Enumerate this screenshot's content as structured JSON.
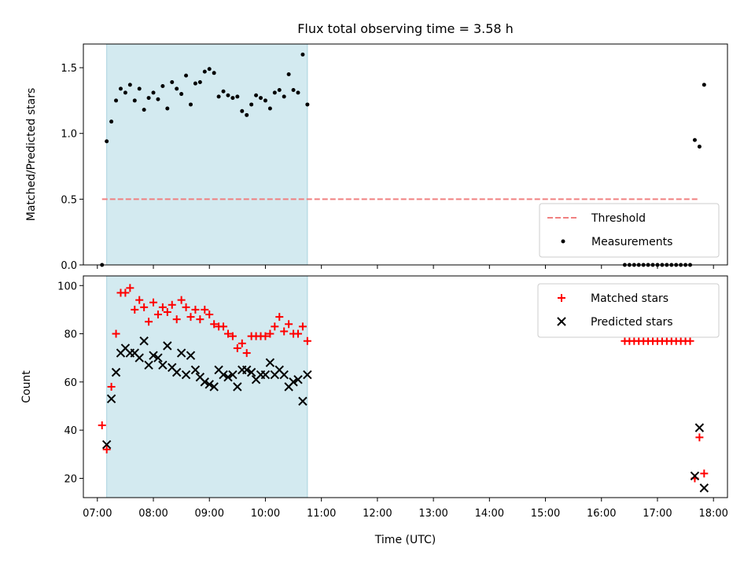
{
  "chart_data": [
    {
      "type": "scatter",
      "title": "Flux total observing time = 3.58 h",
      "xlabel": "",
      "ylabel": "Matched/Predicted stars",
      "x_unit": "Time (UTC)",
      "xlim": [
        "06:45",
        "18:15"
      ],
      "ylim": [
        0,
        1.68
      ],
      "yticks": [
        "0.0",
        "0.5",
        "1.0",
        "1.5"
      ],
      "ytick_values": [
        0,
        0.5,
        1.0,
        1.5
      ],
      "shaded_span": {
        "start": "07:10",
        "end": "10:45",
        "color": "#d3eaf0"
      },
      "threshold": {
        "name": "Threshold",
        "y": 0.5,
        "x_start": "07:05",
        "x_end": "17:45",
        "color": "#f08080"
      },
      "legend": {
        "placement": "lower right",
        "entries": [
          "Threshold",
          "Measurements"
        ]
      },
      "series": [
        {
          "name": "Measurements",
          "marker": "dot",
          "color": "#000000",
          "points": [
            [
              "07:05",
              0.0
            ],
            [
              "07:10",
              0.94
            ],
            [
              "07:15",
              1.09
            ],
            [
              "07:20",
              1.25
            ],
            [
              "07:25",
              1.34
            ],
            [
              "07:30",
              1.31
            ],
            [
              "07:35",
              1.37
            ],
            [
              "07:40",
              1.25
            ],
            [
              "07:45",
              1.34
            ],
            [
              "07:50",
              1.18
            ],
            [
              "07:55",
              1.27
            ],
            [
              "08:00",
              1.31
            ],
            [
              "08:05",
              1.26
            ],
            [
              "08:10",
              1.36
            ],
            [
              "08:15",
              1.19
            ],
            [
              "08:20",
              1.39
            ],
            [
              "08:25",
              1.34
            ],
            [
              "08:30",
              1.3
            ],
            [
              "08:35",
              1.44
            ],
            [
              "08:40",
              1.22
            ],
            [
              "08:45",
              1.38
            ],
            [
              "08:50",
              1.39
            ],
            [
              "08:55",
              1.47
            ],
            [
              "09:00",
              1.49
            ],
            [
              "09:05",
              1.46
            ],
            [
              "09:10",
              1.28
            ],
            [
              "09:15",
              1.32
            ],
            [
              "09:20",
              1.29
            ],
            [
              "09:25",
              1.27
            ],
            [
              "09:30",
              1.28
            ],
            [
              "09:35",
              1.17
            ],
            [
              "09:40",
              1.14
            ],
            [
              "09:45",
              1.22
            ],
            [
              "09:50",
              1.29
            ],
            [
              "09:55",
              1.27
            ],
            [
              "10:00",
              1.25
            ],
            [
              "10:05",
              1.19
            ],
            [
              "10:10",
              1.31
            ],
            [
              "10:15",
              1.33
            ],
            [
              "10:20",
              1.28
            ],
            [
              "10:25",
              1.45
            ],
            [
              "10:30",
              1.33
            ],
            [
              "10:35",
              1.31
            ],
            [
              "10:40",
              1.6
            ],
            [
              "10:45",
              1.22
            ],
            [
              "16:25",
              0.0
            ],
            [
              "16:30",
              0.0
            ],
            [
              "16:35",
              0.0
            ],
            [
              "16:40",
              0.0
            ],
            [
              "16:45",
              0.0
            ],
            [
              "16:50",
              0.0
            ],
            [
              "16:55",
              0.0
            ],
            [
              "17:00",
              0.0
            ],
            [
              "17:05",
              0.0
            ],
            [
              "17:10",
              0.0
            ],
            [
              "17:15",
              0.0
            ],
            [
              "17:20",
              0.0
            ],
            [
              "17:25",
              0.0
            ],
            [
              "17:30",
              0.0
            ],
            [
              "17:35",
              0.0
            ],
            [
              "17:40",
              0.95
            ],
            [
              "17:45",
              0.9
            ],
            [
              "17:50",
              1.37
            ]
          ]
        }
      ]
    },
    {
      "type": "scatter",
      "title": "",
      "xlabel": "Time (UTC)",
      "ylabel": "Count",
      "xlim": [
        "06:45",
        "18:15"
      ],
      "ylim": [
        12,
        104
      ],
      "xticks": [
        "07:00",
        "08:00",
        "09:00",
        "10:00",
        "11:00",
        "12:00",
        "13:00",
        "14:00",
        "15:00",
        "16:00",
        "17:00",
        "18:00"
      ],
      "yticks": [
        "20",
        "40",
        "60",
        "80",
        "100"
      ],
      "ytick_values": [
        20,
        40,
        60,
        80,
        100
      ],
      "shaded_span": {
        "start": "07:10",
        "end": "10:45",
        "color": "#d3eaf0"
      },
      "legend": {
        "placement": "upper right",
        "entries": [
          "Matched stars",
          "Predicted stars"
        ]
      },
      "series": [
        {
          "name": "Matched stars",
          "marker": "plus",
          "color": "#ff0000",
          "points": [
            [
              "07:05",
              42
            ],
            [
              "07:10",
              32
            ],
            [
              "07:15",
              58
            ],
            [
              "07:20",
              80
            ],
            [
              "07:25",
              97
            ],
            [
              "07:30",
              97
            ],
            [
              "07:35",
              99
            ],
            [
              "07:40",
              90
            ],
            [
              "07:45",
              94
            ],
            [
              "07:50",
              91
            ],
            [
              "07:55",
              85
            ],
            [
              "08:00",
              93
            ],
            [
              "08:05",
              88
            ],
            [
              "08:10",
              91
            ],
            [
              "08:15",
              89
            ],
            [
              "08:20",
              92
            ],
            [
              "08:25",
              86
            ],
            [
              "08:30",
              94
            ],
            [
              "08:35",
              91
            ],
            [
              "08:40",
              87
            ],
            [
              "08:45",
              90
            ],
            [
              "08:50",
              86
            ],
            [
              "08:55",
              90
            ],
            [
              "09:00",
              88
            ],
            [
              "09:05",
              84
            ],
            [
              "09:10",
              83
            ],
            [
              "09:15",
              83
            ],
            [
              "09:20",
              80
            ],
            [
              "09:25",
              79
            ],
            [
              "09:30",
              74
            ],
            [
              "09:35",
              76
            ],
            [
              "09:40",
              72
            ],
            [
              "09:45",
              79
            ],
            [
              "09:50",
              79
            ],
            [
              "09:55",
              79
            ],
            [
              "10:00",
              79
            ],
            [
              "10:05",
              80
            ],
            [
              "10:10",
              83
            ],
            [
              "10:15",
              87
            ],
            [
              "10:20",
              81
            ],
            [
              "10:25",
              84
            ],
            [
              "10:30",
              80
            ],
            [
              "10:35",
              80
            ],
            [
              "10:40",
              83
            ],
            [
              "10:45",
              77
            ],
            [
              "16:25",
              77
            ],
            [
              "16:30",
              77
            ],
            [
              "16:35",
              77
            ],
            [
              "16:40",
              77
            ],
            [
              "16:45",
              77
            ],
            [
              "16:50",
              77
            ],
            [
              "16:55",
              77
            ],
            [
              "17:00",
              77
            ],
            [
              "17:05",
              77
            ],
            [
              "17:10",
              77
            ],
            [
              "17:15",
              77
            ],
            [
              "17:20",
              77
            ],
            [
              "17:25",
              77
            ],
            [
              "17:30",
              77
            ],
            [
              "17:35",
              77
            ],
            [
              "17:40",
              20
            ],
            [
              "17:45",
              37
            ],
            [
              "17:50",
              22
            ]
          ]
        },
        {
          "name": "Predicted stars",
          "marker": "x",
          "color": "#000000",
          "points": [
            [
              "07:10",
              34
            ],
            [
              "07:15",
              53
            ],
            [
              "07:20",
              64
            ],
            [
              "07:25",
              72
            ],
            [
              "07:30",
              74
            ],
            [
              "07:35",
              72
            ],
            [
              "07:40",
              72
            ],
            [
              "07:45",
              70
            ],
            [
              "07:50",
              77
            ],
            [
              "07:55",
              67
            ],
            [
              "08:00",
              71
            ],
            [
              "08:05",
              70
            ],
            [
              "08:10",
              67
            ],
            [
              "08:15",
              75
            ],
            [
              "08:20",
              66
            ],
            [
              "08:25",
              64
            ],
            [
              "08:30",
              72
            ],
            [
              "08:35",
              63
            ],
            [
              "08:40",
              71
            ],
            [
              "08:45",
              65
            ],
            [
              "08:50",
              62
            ],
            [
              "08:55",
              60
            ],
            [
              "09:00",
              59
            ],
            [
              "09:05",
              58
            ],
            [
              "09:10",
              65
            ],
            [
              "09:15",
              63
            ],
            [
              "09:20",
              62
            ],
            [
              "09:25",
              63
            ],
            [
              "09:30",
              58
            ],
            [
              "09:35",
              65
            ],
            [
              "09:40",
              65
            ],
            [
              "09:45",
              64
            ],
            [
              "09:50",
              61
            ],
            [
              "09:55",
              63
            ],
            [
              "10:00",
              63
            ],
            [
              "10:05",
              68
            ],
            [
              "10:10",
              63
            ],
            [
              "10:15",
              65
            ],
            [
              "10:20",
              63
            ],
            [
              "10:25",
              58
            ],
            [
              "10:30",
              60
            ],
            [
              "10:35",
              61
            ],
            [
              "10:40",
              52
            ],
            [
              "10:45",
              63
            ],
            [
              "17:40",
              21
            ],
            [
              "17:45",
              41
            ],
            [
              "17:50",
              16
            ]
          ]
        }
      ]
    }
  ]
}
